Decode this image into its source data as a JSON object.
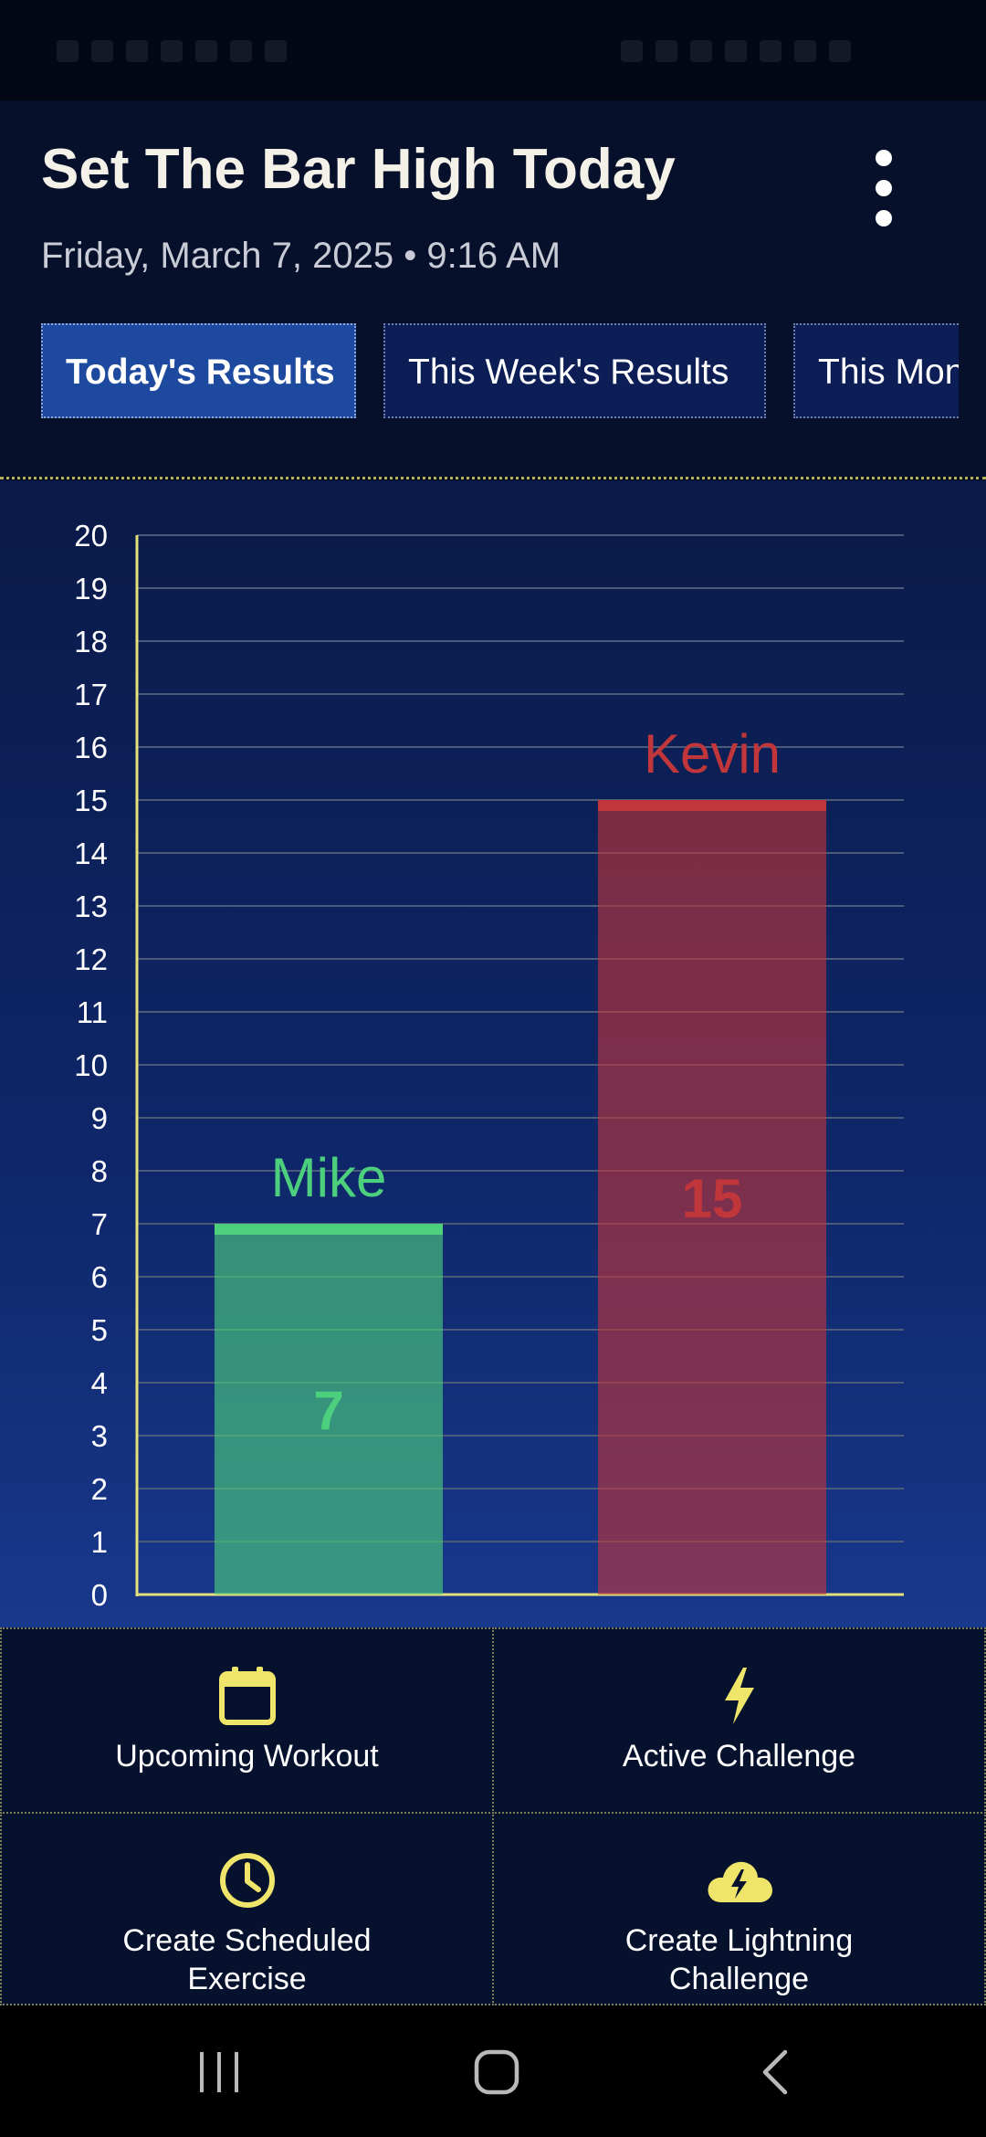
{
  "app": {
    "title": "Set The Bar High Today",
    "date": "Friday, March 7, 2025 • 9:16 AM"
  },
  "menu_icon": "more-vertical-icon",
  "tabs": [
    {
      "label": "Today's Results",
      "active": true
    },
    {
      "label": "This Week's Results",
      "active": false
    },
    {
      "label": "This Month's Results",
      "active": false
    }
  ],
  "chart_data": {
    "type": "bar",
    "categories": [
      "Mike",
      "Kevin"
    ],
    "values": [
      7,
      15
    ],
    "colors": [
      "#4cd07d",
      "#c0363a"
    ],
    "ylim": [
      0,
      20
    ],
    "yticks": [
      0,
      1,
      2,
      3,
      4,
      5,
      6,
      7,
      8,
      9,
      10,
      11,
      12,
      13,
      14,
      15,
      16,
      17,
      18,
      19,
      20
    ],
    "grid": true,
    "axis_color": "#e6e07a",
    "title": "",
    "xlabel": "",
    "ylabel": ""
  },
  "actions": [
    {
      "label": "Upcoming Workout",
      "icon": "calendar-icon"
    },
    {
      "label": "Active Challenge",
      "icon": "lightning-icon"
    },
    {
      "label": "Create Scheduled\nExercise",
      "icon": "clock-icon"
    },
    {
      "label": "Create Lightning\nChallenge",
      "icon": "cloud-lightning-icon"
    }
  ],
  "colors": {
    "accent_yellow": "#efe56a",
    "tab_active": "#1d4a9e",
    "tab_inactive": "#0c1e55"
  }
}
